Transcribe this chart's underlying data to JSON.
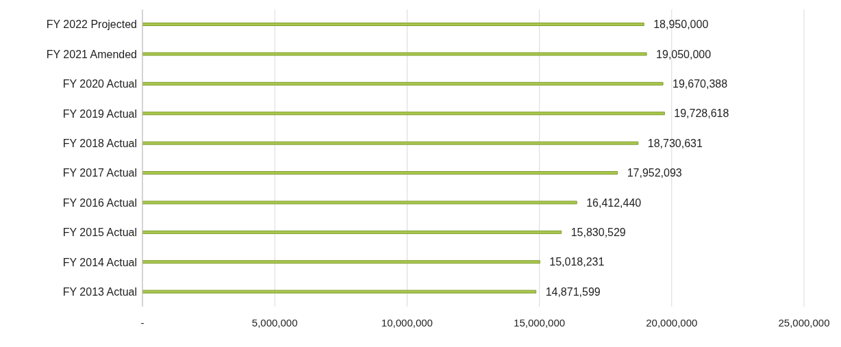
{
  "chart_data": {
    "type": "bar",
    "orientation": "horizontal",
    "categories": [
      "FY 2022 Projected",
      "FY 2021 Amended",
      "FY 2020 Actual",
      "FY 2019 Actual",
      "FY 2018 Actual",
      "FY 2017 Actual",
      "FY 2016 Actual",
      "FY 2015 Actual",
      "FY 2014 Actual",
      "FY 2013 Actual"
    ],
    "values": [
      18950000,
      19050000,
      19670388,
      19728618,
      18730631,
      17952093,
      16412440,
      15830529,
      15018231,
      14871599
    ],
    "color": "#a9c84c",
    "value_labels": [
      "18,950,000",
      "19,050,000",
      "19,670,388",
      "19,728,618",
      "18,730,631",
      "17,952,093",
      "16,412,440",
      "15,830,529",
      "15,018,231",
      "14,871,599"
    ],
    "xlim": [
      0,
      25000000
    ],
    "xticks": [
      {
        "value": 0,
        "label": "-"
      },
      {
        "value": 5000000,
        "label": "5,000,000"
      },
      {
        "value": 10000000,
        "label": "10,000,000"
      },
      {
        "value": 15000000,
        "label": "15,000,000"
      },
      {
        "value": 20000000,
        "label": "20,000,000"
      },
      {
        "value": 25000000,
        "label": "25,000,000"
      }
    ],
    "grid": "x"
  }
}
